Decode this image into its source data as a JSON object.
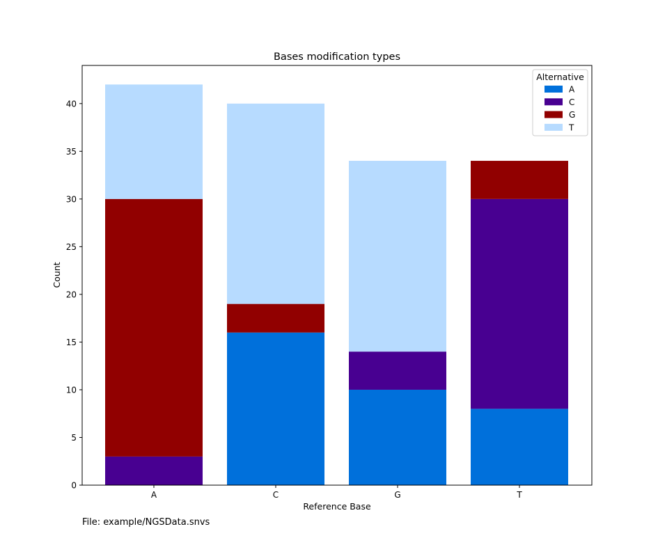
{
  "footer": {
    "file_label": "File: example/NGSData.snvs"
  },
  "chart_data": {
    "type": "bar",
    "stacked": true,
    "title": "Bases modification types",
    "xlabel": "Reference Base",
    "ylabel": "Count",
    "categories": [
      "A",
      "C",
      "G",
      "T"
    ],
    "ylim": [
      0,
      44
    ],
    "yticks": [
      0,
      5,
      10,
      15,
      20,
      25,
      30,
      35,
      40
    ],
    "grid": false,
    "legend": {
      "title": "Alternative",
      "position": "top-right"
    },
    "series": [
      {
        "name": "A",
        "color": "#0070DB",
        "values": [
          0,
          16,
          10,
          8
        ]
      },
      {
        "name": "C",
        "color": "#480091",
        "values": [
          3,
          0,
          4,
          22
        ]
      },
      {
        "name": "G",
        "color": "#910000",
        "values": [
          27,
          3,
          0,
          4
        ]
      },
      {
        "name": "T",
        "color": "#B7DBFF",
        "values": [
          12,
          21,
          20,
          0
        ]
      }
    ]
  }
}
